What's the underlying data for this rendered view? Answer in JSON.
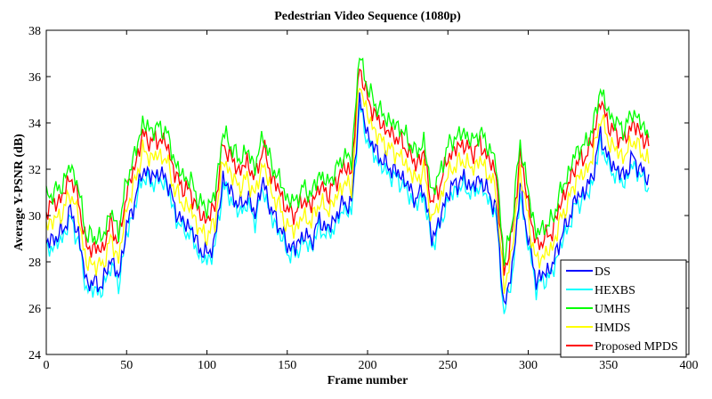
{
  "chart_data": {
    "type": "line",
    "title": "Pedestrian Video Sequence (1080p)",
    "xlabel": "Frame number",
    "ylabel": "Average Y-PSNR (dB)",
    "xlim": [
      0,
      400
    ],
    "ylim": [
      24,
      38
    ],
    "xticks": [
      0,
      50,
      100,
      150,
      200,
      250,
      300,
      350,
      400
    ],
    "yticks": [
      24,
      26,
      28,
      30,
      32,
      34,
      36,
      38
    ],
    "grid": false,
    "legend_position": "bottom-right",
    "base_profile": {
      "x": [
        0,
        5,
        10,
        15,
        20,
        25,
        30,
        35,
        40,
        45,
        50,
        55,
        60,
        65,
        70,
        75,
        80,
        85,
        90,
        95,
        100,
        105,
        110,
        115,
        120,
        125,
        130,
        135,
        140,
        145,
        150,
        155,
        160,
        165,
        170,
        175,
        180,
        185,
        190,
        195,
        200,
        205,
        210,
        215,
        220,
        225,
        230,
        235,
        240,
        245,
        250,
        255,
        260,
        265,
        270,
        275,
        280,
        285,
        290,
        295,
        300,
        305,
        310,
        315,
        320,
        325,
        330,
        335,
        340,
        345,
        350,
        355,
        360,
        365,
        370,
        375
      ],
      "y": [
        28.8,
        29.0,
        29.3,
        30.2,
        29.2,
        27.1,
        27.1,
        27.0,
        28.2,
        27.3,
        29.5,
        30.6,
        32.0,
        31.7,
        31.8,
        31.6,
        30.3,
        29.7,
        29.5,
        28.6,
        28.3,
        28.9,
        31.6,
        31.0,
        30.4,
        30.8,
        30.1,
        31.5,
        30.2,
        29.6,
        28.7,
        28.6,
        29.2,
        28.9,
        29.8,
        29.4,
        29.9,
        30.6,
        30.4,
        35.0,
        33.5,
        32.8,
        32.3,
        32.0,
        31.8,
        31.3,
        30.7,
        31.2,
        29.0,
        29.8,
        31.0,
        31.4,
        31.6,
        31.2,
        31.6,
        31.0,
        30.3,
        26.0,
        27.7,
        31.2,
        29.0,
        27.2,
        27.5,
        27.8,
        29.0,
        29.8,
        30.8,
        31.0,
        31.7,
        33.5,
        32.4,
        32.0,
        31.7,
        32.5,
        32.0,
        31.5
      ]
    },
    "series": [
      {
        "name": "DS",
        "color": "#0000ff",
        "offset": 0.0
      },
      {
        "name": "HEXBS",
        "color": "#00ffff",
        "offset": -0.3
      },
      {
        "name": "UMHS",
        "color": "#00ff00",
        "offset": 2.0
      },
      {
        "name": "HMDS",
        "color": "#ffff00",
        "offset": 0.8
      },
      {
        "name": "Proposed MPDS",
        "color": "#ff0000",
        "offset": 1.5
      }
    ]
  }
}
